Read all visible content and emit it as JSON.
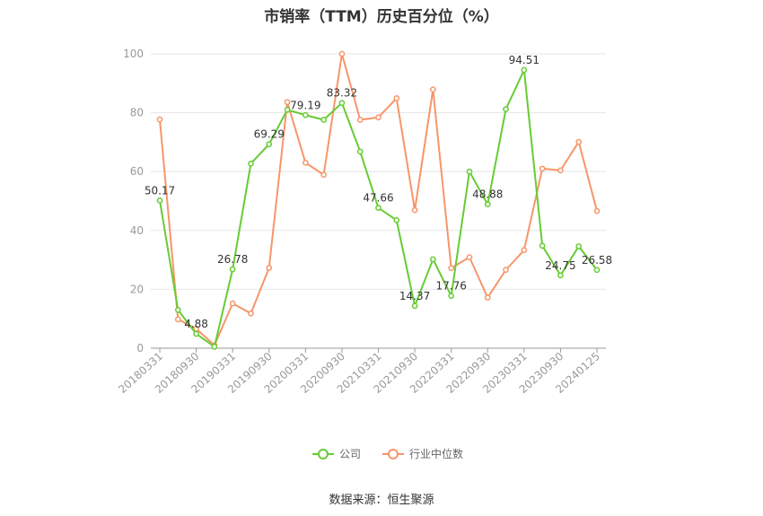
{
  "chart_data": {
    "type": "line",
    "title": "市销率（TTM）历史百分位（%）",
    "source": "数据来源：恒生聚源",
    "ylim": [
      0,
      100
    ],
    "yticks": [
      "0",
      "20",
      "40",
      "60",
      "80",
      "100"
    ],
    "x": [
      "20180331",
      "20180630",
      "20180930",
      "20181231",
      "20190331",
      "20190630",
      "20190930",
      "20191231",
      "20200331",
      "20200630",
      "20200930",
      "20201231",
      "20210331",
      "20210630",
      "20210930",
      "20211231",
      "20220331",
      "20220630",
      "20220930",
      "20221231",
      "20230331",
      "20230630",
      "20230930",
      "20231231",
      "20240125"
    ],
    "xtick_labels": [
      "20180331",
      "20180930",
      "20190331",
      "20190930",
      "20200331",
      "20200930",
      "20210331",
      "20210930",
      "20220331",
      "20220930",
      "20230331",
      "20230930",
      "20240125"
    ],
    "xtick_indices": [
      0,
      2,
      4,
      6,
      8,
      10,
      12,
      14,
      16,
      18,
      20,
      22,
      24
    ],
    "series": [
      {
        "name": "公司",
        "color": "#66cc33",
        "values": [
          50.17,
          13.0,
          4.88,
          0.5,
          26.78,
          62.7,
          69.29,
          81.0,
          79.19,
          77.6,
          83.32,
          66.8,
          47.66,
          43.5,
          14.37,
          30.2,
          17.76,
          60.0,
          48.88,
          81.2,
          94.51,
          34.8,
          24.75,
          34.6,
          26.58
        ],
        "labels": [
          "50.17",
          "",
          "4.88",
          "",
          "26.78",
          "",
          "69.29",
          "",
          "79.19",
          "",
          "83.32",
          "",
          "47.66",
          "",
          "14.37",
          "",
          "17.76",
          "",
          "48.88",
          "",
          "94.51",
          "",
          "24.75",
          "",
          "26.58"
        ]
      },
      {
        "name": "行业中位数",
        "color": "#f7956a",
        "values": [
          77.7,
          9.8,
          6.6,
          1.0,
          15.2,
          11.8,
          27.3,
          83.6,
          63.0,
          58.9,
          100.0,
          77.6,
          78.4,
          84.9,
          46.9,
          87.9,
          27.2,
          30.9,
          17.2,
          26.6,
          33.3,
          61.0,
          60.4,
          70.1,
          46.6
        ]
      }
    ],
    "legend_position": "bottom"
  }
}
